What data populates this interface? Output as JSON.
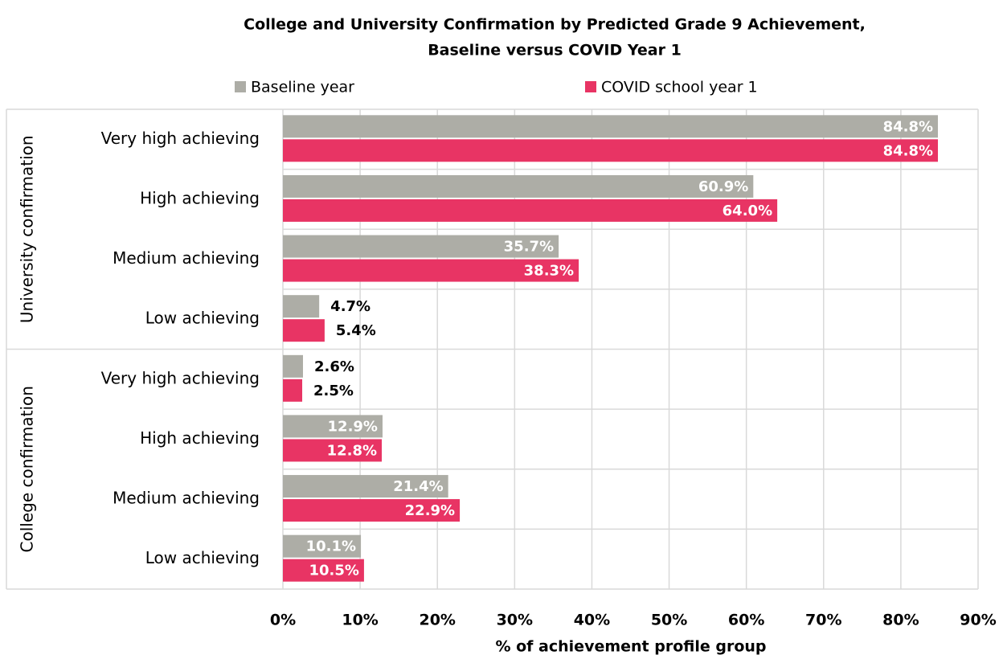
{
  "chart_data": {
    "type": "bar",
    "orientation": "horizontal",
    "title": [
      "College and University Confirmation by Predicted Grade 9 Achievement,",
      "Baseline versus COVID Year 1"
    ],
    "x_label": "% of achievement profile group",
    "groups": [
      {
        "name": "University confirmation",
        "categories": [
          "Very high achieving",
          "High achieving",
          "Medium achieving",
          "Low achieving"
        ]
      },
      {
        "name": "College confirmation",
        "categories": [
          "Very high achieving",
          "High achieving",
          "Medium achieving",
          "Low achieving"
        ]
      }
    ],
    "series": [
      {
        "name": "Baseline year",
        "color": "#adada6",
        "values": [
          84.8,
          60.9,
          35.7,
          4.7,
          2.6,
          12.9,
          21.4,
          10.1
        ],
        "value_labels": [
          "84.8%",
          "60.9%",
          "35.7%",
          "4.7%",
          "2.6%",
          "12.9%",
          "21.4%",
          "10.1%"
        ]
      },
      {
        "name": "COVID school year 1",
        "color": "#e83464",
        "values": [
          84.8,
          64.0,
          38.3,
          5.4,
          2.5,
          12.8,
          22.9,
          10.5
        ],
        "value_labels": [
          "84.8%",
          "64.0%",
          "38.3%",
          "5.4%",
          "2.5%",
          "12.8%",
          "22.9%",
          "10.5%"
        ]
      }
    ],
    "xlim": [
      0,
      90
    ],
    "xticks": [
      {
        "value": 0,
        "label": "0%"
      },
      {
        "value": 10,
        "label": "10%"
      },
      {
        "value": 20,
        "label": "20%"
      },
      {
        "value": 30,
        "label": "30%"
      },
      {
        "value": 40,
        "label": "40%"
      },
      {
        "value": 50,
        "label": "50%"
      },
      {
        "value": 60,
        "label": "60%"
      },
      {
        "value": 70,
        "label": "70%"
      },
      {
        "value": 80,
        "label": "80%"
      },
      {
        "value": 90,
        "label": "90%"
      }
    ],
    "grid": true,
    "legend": "top"
  }
}
